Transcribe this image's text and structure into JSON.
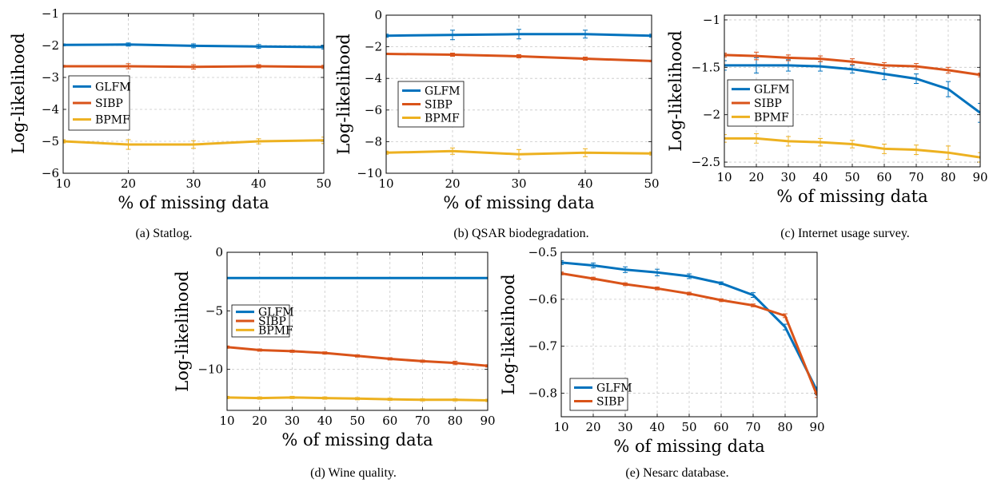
{
  "colors": {
    "GLFM": "#0072bd",
    "SIBP": "#d95319",
    "BPMF": "#edb120"
  },
  "chart_data": [
    {
      "type": "line",
      "caption": "(a) Statlog.",
      "xlabel": "% of missing data",
      "ylabel": "Log-likelihood",
      "xlim": [
        10,
        50
      ],
      "ylim": [
        -6,
        -1
      ],
      "xticks": [
        10,
        20,
        30,
        40,
        50
      ],
      "yticks": [
        -6,
        -5,
        -4,
        -3,
        -2,
        -1
      ],
      "ytick_labels": [
        "−6",
        "−5",
        "−4",
        "−3",
        "−2",
        "−1"
      ],
      "grid": true,
      "legend_position": "center-left",
      "x": [
        10,
        20,
        30,
        40,
        50
      ],
      "series": [
        {
          "name": "GLFM",
          "values": [
            -1.98,
            -1.97,
            -2.01,
            -2.03,
            -2.05
          ],
          "errors": [
            0.03,
            0.05,
            0.06,
            0.06,
            0.06
          ]
        },
        {
          "name": "SIBP",
          "values": [
            -2.65,
            -2.65,
            -2.67,
            -2.65,
            -2.67
          ],
          "errors": [
            0.03,
            0.08,
            0.07,
            0.05,
            0.05
          ]
        },
        {
          "name": "BPMF",
          "values": [
            -5.0,
            -5.1,
            -5.1,
            -5.0,
            -4.97
          ],
          "errors": [
            0.05,
            0.15,
            0.12,
            0.08,
            0.1
          ]
        }
      ]
    },
    {
      "type": "line",
      "caption": "(b) QSAR biodegradation.",
      "xlabel": "% of missing data",
      "ylabel": "Log-likelihood",
      "xlim": [
        10,
        50
      ],
      "ylim": [
        -10,
        0
      ],
      "xticks": [
        10,
        20,
        30,
        40,
        50
      ],
      "yticks": [
        -10,
        -8,
        -6,
        -4,
        -2,
        0
      ],
      "ytick_labels": [
        "−10",
        "−8",
        "−6",
        "−4",
        "−2",
        "0"
      ],
      "grid": true,
      "legend_position": "center-left",
      "x": [
        10,
        20,
        30,
        40,
        50
      ],
      "series": [
        {
          "name": "GLFM",
          "values": [
            -1.3,
            -1.25,
            -1.2,
            -1.2,
            -1.3
          ],
          "errors": [
            0.1,
            0.3,
            0.3,
            0.25,
            0.1
          ]
        },
        {
          "name": "SIBP",
          "values": [
            -2.45,
            -2.5,
            -2.6,
            -2.75,
            -2.9
          ],
          "errors": [
            0.05,
            0.1,
            0.1,
            0.1,
            0.05
          ]
        },
        {
          "name": "BPMF",
          "values": [
            -8.7,
            -8.6,
            -8.8,
            -8.7,
            -8.75
          ],
          "errors": [
            0.1,
            0.2,
            0.3,
            0.25,
            0.1
          ]
        }
      ]
    },
    {
      "type": "line",
      "caption": "(c) Internet usage survey.",
      "xlabel": "% of missing data",
      "ylabel": "Log-likelihood",
      "xlim": [
        10,
        90
      ],
      "ylim": [
        -2.55,
        -0.95
      ],
      "xticks": [
        10,
        20,
        30,
        40,
        50,
        60,
        70,
        80,
        90
      ],
      "yticks": [
        -2.5,
        -2,
        -1.5,
        -1
      ],
      "ytick_labels": [
        "−2.5",
        "−2",
        "−1.5",
        "−1"
      ],
      "grid": true,
      "legend_position": "center-left",
      "x": [
        10,
        20,
        30,
        40,
        50,
        60,
        70,
        80,
        90
      ],
      "series": [
        {
          "name": "GLFM",
          "values": [
            -1.48,
            -1.48,
            -1.48,
            -1.49,
            -1.52,
            -1.57,
            -1.62,
            -1.73,
            -1.98
          ],
          "errors": [
            0.05,
            0.08,
            0.06,
            0.05,
            0.04,
            0.06,
            0.05,
            0.08,
            0.1
          ]
        },
        {
          "name": "SIBP",
          "values": [
            -1.37,
            -1.38,
            -1.4,
            -1.41,
            -1.44,
            -1.48,
            -1.49,
            -1.53,
            -1.58
          ],
          "errors": [
            0.02,
            0.04,
            0.03,
            0.03,
            0.03,
            0.03,
            0.03,
            0.03,
            0.02
          ]
        },
        {
          "name": "BPMF",
          "values": [
            -2.25,
            -2.25,
            -2.28,
            -2.29,
            -2.31,
            -2.36,
            -2.37,
            -2.4,
            -2.45
          ],
          "errors": [
            0.04,
            0.05,
            0.05,
            0.04,
            0.04,
            0.05,
            0.05,
            0.07,
            0.05
          ]
        }
      ]
    },
    {
      "type": "line",
      "caption": "(d) Wine quality.",
      "xlabel": "% of missing data",
      "ylabel": "Log-likelihood",
      "xlim": [
        10,
        90
      ],
      "ylim": [
        -13.5,
        0
      ],
      "xticks": [
        10,
        20,
        30,
        40,
        50,
        60,
        70,
        80,
        90
      ],
      "yticks": [
        -10,
        -5,
        0
      ],
      "ytick_labels": [
        "−10",
        "−5",
        "0"
      ],
      "grid": true,
      "legend_position": "center-left",
      "x": [
        10,
        20,
        30,
        40,
        50,
        60,
        70,
        80,
        90
      ],
      "series": [
        {
          "name": "GLFM",
          "values": [
            -2.2,
            -2.2,
            -2.2,
            -2.2,
            -2.2,
            -2.2,
            -2.2,
            -2.2,
            -2.2
          ],
          "errors": [
            0.02,
            0.02,
            0.02,
            0.02,
            0.02,
            0.02,
            0.02,
            0.02,
            0.02
          ]
        },
        {
          "name": "SIBP",
          "values": [
            -8.1,
            -8.35,
            -8.45,
            -8.6,
            -8.85,
            -9.1,
            -9.3,
            -9.45,
            -9.7
          ],
          "errors": [
            0.1,
            0.1,
            0.1,
            0.1,
            0.1,
            0.1,
            0.1,
            0.15,
            0.1
          ]
        },
        {
          "name": "BPMF",
          "values": [
            -12.4,
            -12.45,
            -12.4,
            -12.45,
            -12.5,
            -12.55,
            -12.6,
            -12.6,
            -12.65
          ],
          "errors": [
            0.1,
            0.1,
            0.1,
            0.1,
            0.1,
            0.1,
            0.1,
            0.1,
            0.1
          ]
        }
      ]
    },
    {
      "type": "line",
      "caption": "(e) Nesarc database.",
      "xlabel": "% of missing data",
      "ylabel": "Log-likelihood",
      "xlim": [
        10,
        90
      ],
      "ylim": [
        -0.85,
        -0.5
      ],
      "xticks": [
        10,
        20,
        30,
        40,
        50,
        60,
        70,
        80,
        90
      ],
      "yticks": [
        -0.8,
        -0.7,
        -0.6,
        -0.5
      ],
      "ytick_labels": [
        "−0.8",
        "−0.7",
        "−0.6",
        "−0.5"
      ],
      "grid": true,
      "legend_position": "bottom-left",
      "x": [
        10,
        20,
        30,
        40,
        50,
        60,
        70,
        80,
        90
      ],
      "series": [
        {
          "name": "GLFM",
          "values": [
            -0.522,
            -0.528,
            -0.537,
            -0.543,
            -0.551,
            -0.566,
            -0.591,
            -0.659,
            -0.795
          ],
          "errors": [
            0.004,
            0.005,
            0.006,
            0.007,
            0.005,
            0.003,
            0.005,
            0.006,
            0.008
          ]
        },
        {
          "name": "SIBP",
          "values": [
            -0.545,
            -0.556,
            -0.568,
            -0.577,
            -0.588,
            -0.602,
            -0.613,
            -0.635,
            -0.805
          ],
          "errors": [
            0.003,
            0.003,
            0.003,
            0.003,
            0.003,
            0.003,
            0.003,
            0.004,
            0.004
          ]
        }
      ]
    }
  ]
}
